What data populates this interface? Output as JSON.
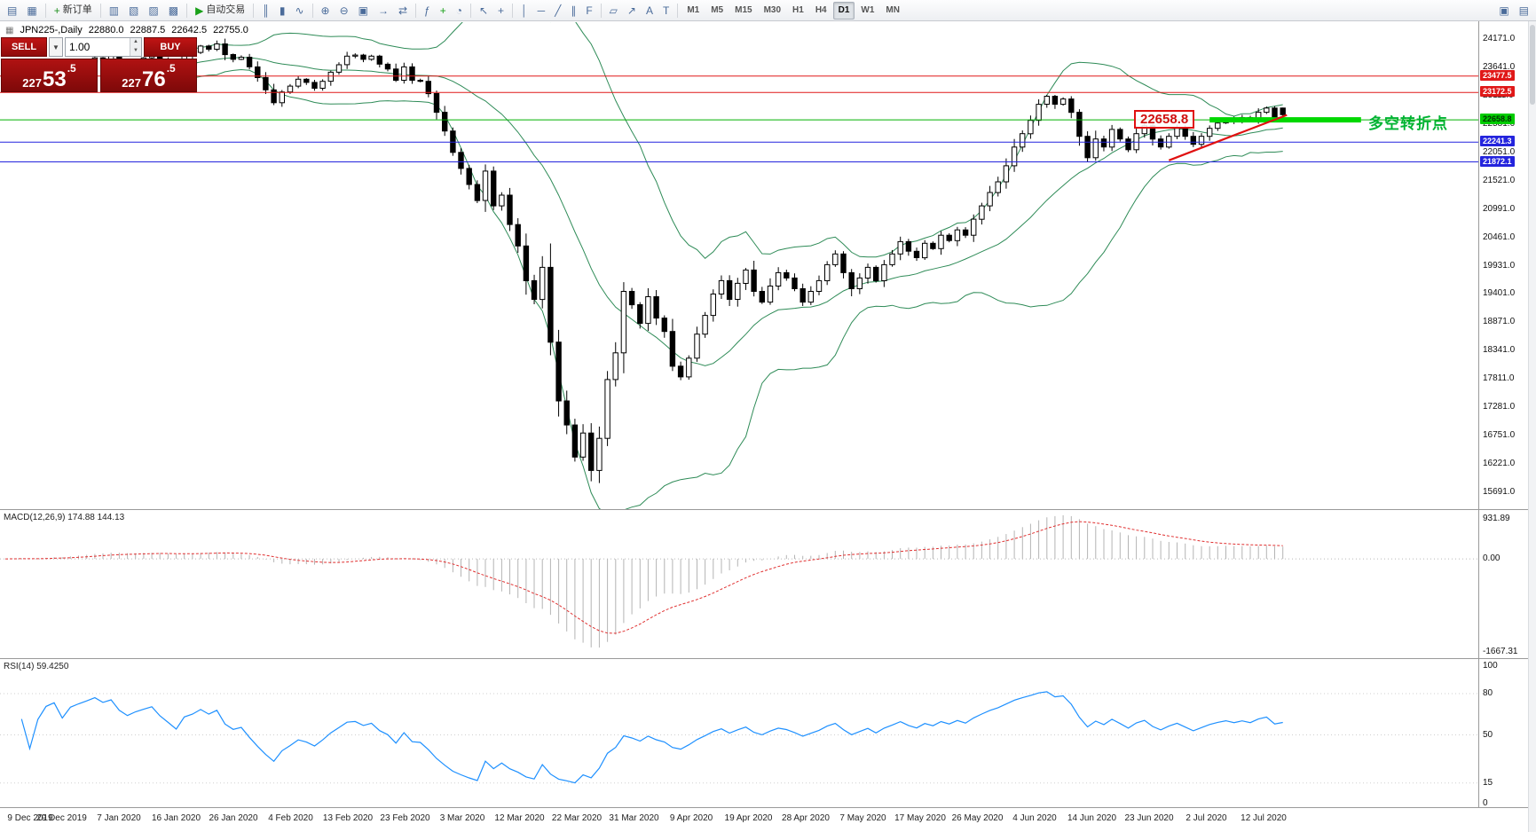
{
  "toolbar": {
    "buttons": [
      {
        "name": "new-chart-icon",
        "glyph": "▤"
      },
      {
        "name": "chart-profiles-icon",
        "glyph": "▦"
      },
      {
        "type": "sep"
      },
      {
        "name": "new-order-button",
        "glyph": "+",
        "glyph_color": "#1f8f1f",
        "label": "新订单"
      },
      {
        "type": "sep"
      },
      {
        "name": "market-watch-icon",
        "glyph": "▥"
      },
      {
        "name": "data-window-icon",
        "glyph": "▧"
      },
      {
        "name": "navigator-icon",
        "glyph": "▨"
      },
      {
        "name": "terminal-icon",
        "glyph": "▩"
      },
      {
        "type": "sep"
      },
      {
        "name": "autotrading-button",
        "glyph": "▶",
        "glyph_color": "#18a018",
        "label": "自动交易"
      },
      {
        "type": "sep"
      },
      {
        "name": "bar-chart-icon",
        "glyph": "║"
      },
      {
        "name": "candlestick-chart-icon",
        "glyph": "▮"
      },
      {
        "name": "line-chart-icon",
        "glyph": "∿"
      },
      {
        "type": "sep"
      },
      {
        "name": "zoom-in-icon",
        "glyph": "⊕"
      },
      {
        "name": "zoom-out-icon",
        "glyph": "⊖"
      },
      {
        "name": "tile-windows-icon",
        "glyph": "▣"
      },
      {
        "name": "auto-scroll-icon",
        "glyph": "→"
      },
      {
        "name": "chart-shift-icon",
        "glyph": "⇄"
      },
      {
        "type": "sep"
      },
      {
        "name": "indicators-icon",
        "glyph": "ƒ"
      },
      {
        "name": "add-indicator-icon",
        "glyph": "+",
        "glyph_color": "#18a018"
      },
      {
        "name": "periods-icon",
        "glyph": "◔"
      },
      {
        "type": "sep"
      },
      {
        "name": "cursor-icon",
        "glyph": "↖"
      },
      {
        "name": "crosshair-icon",
        "glyph": "+"
      },
      {
        "type": "sep"
      },
      {
        "name": "vertical-line-icon",
        "glyph": "│"
      },
      {
        "name": "horizontal-line-icon",
        "glyph": "─"
      },
      {
        "name": "trendline-icon",
        "glyph": "╱"
      },
      {
        "name": "channel-icon",
        "glyph": "∥"
      },
      {
        "name": "fibonacci-icon",
        "glyph": "F"
      },
      {
        "type": "sep"
      },
      {
        "name": "shapes-icon",
        "glyph": "▱"
      },
      {
        "name": "arrows-icon",
        "glyph": "↗"
      },
      {
        "name": "text-icon",
        "glyph": "A"
      },
      {
        "name": "text-label-icon",
        "glyph": "T"
      },
      {
        "type": "sep"
      }
    ],
    "timeframes": {
      "items": [
        "M1",
        "M5",
        "M15",
        "M30",
        "H1",
        "H4",
        "D1",
        "W1",
        "MN"
      ],
      "active": "D1"
    },
    "right_buttons": [
      {
        "name": "dock-window-icon",
        "glyph": "▣"
      },
      {
        "name": "window-list-icon",
        "glyph": "▤"
      }
    ]
  },
  "chart_header": {
    "symbol": "JPN225-,Daily",
    "open": "22880.0",
    "high": "22887.5",
    "low": "22642.5",
    "close": "22755.0"
  },
  "trade_panel": {
    "sell_label": "SELL",
    "buy_label": "BUY",
    "volume": "1.00",
    "sell_price_head": "227",
    "sell_price_big": "53",
    "sell_price_frac": ".5",
    "buy_price_head": "227",
    "buy_price_big": "76",
    "buy_price_frac": ".5"
  },
  "overlays": {
    "hlines": [
      {
        "name": "resistance-line-1",
        "price": 23477.5,
        "color": "#e01818",
        "width": 1
      },
      {
        "name": "resistance-line-2",
        "price": 23172.5,
        "color": "#e01818",
        "width": 1
      },
      {
        "name": "pivot-line",
        "price": 22658.8,
        "color": "#00b000",
        "width": 1
      },
      {
        "name": "support-line-1",
        "price": 22241.3,
        "color": "#2424dd",
        "width": 1
      },
      {
        "name": "support-line-2",
        "price": 21872.1,
        "color": "#2424dd",
        "width": 1
      }
    ],
    "pivot_bar": {
      "price": 22658.8,
      "bar1": 148,
      "bar2": 166.6,
      "color": "#00d800"
    },
    "trend_line": {
      "bar1": 143,
      "price1": 21900,
      "bar2": 157.5,
      "price2": 22750,
      "color": "#e01010"
    },
    "callout_text": "22658.8",
    "annotation_text": "多空转折点"
  },
  "price_axis": {
    "labels": [
      "24171.0",
      "23641.0",
      "23111.0",
      "22581.0",
      "22051.0",
      "21521.0",
      "20991.0",
      "20461.0",
      "19931.0",
      "19401.0",
      "18871.0",
      "18341.0",
      "17811.0",
      "17281.0",
      "16751.0",
      "16221.0",
      "15691.0"
    ],
    "markers": [
      {
        "value": "23477.5",
        "price": 23477.5,
        "color": "#e01818",
        "text": "#ffffff"
      },
      {
        "value": "23172.5",
        "price": 23172.5,
        "color": "#e01818",
        "text": "#ffffff"
      },
      {
        "value": "22658.8",
        "price": 22658.8,
        "color": "#00cc00",
        "text": "#033003"
      },
      {
        "value": "22241.3",
        "price": 22241.3,
        "color": "#2424dd",
        "text": "#ffffff"
      },
      {
        "value": "21872.1",
        "price": 21872.1,
        "color": "#2424dd",
        "text": "#ffffff"
      }
    ]
  },
  "macd_panel": {
    "label": "MACD(12,26,9) 174.88 144.13",
    "axis_top": "931.89",
    "axis_zero": "0.00",
    "axis_bottom": "-1667.31"
  },
  "rsi_panel": {
    "label": "RSI(14) 59.4250",
    "levels": [
      100,
      80,
      50,
      15,
      0
    ]
  },
  "date_axis": {
    "labels": [
      "9 Dec 2019",
      "29 Dec 2019",
      "7 Jan 2020",
      "16 Jan 2020",
      "26 Jan 2020",
      "4 Feb 2020",
      "13 Feb 2020",
      "23 Feb 2020",
      "3 Mar 2020",
      "12 Mar 2020",
      "22 Mar 2020",
      "31 Mar 2020",
      "9 Apr 2020",
      "19 Apr 2020",
      "28 Apr 2020",
      "7 May 2020",
      "17 May 2020",
      "26 May 2020",
      "4 Jun 2020",
      "14 Jun 2020",
      "23 Jun 2020",
      "2 Jul 2020",
      "12 Jul 2020"
    ]
  },
  "chart_data": {
    "type": "candlestick",
    "symbol": "JPN225",
    "timeframe": "Daily",
    "visible_range": {
      "first_date": "9 Dec 2019",
      "last_date": "12 Jul 2020"
    },
    "price_axis_range": [
      15691.0,
      24171.0
    ],
    "closes": [
      23350,
      23430,
      23380,
      23310,
      23420,
      23520,
      23560,
      23480,
      23620,
      23680,
      23740,
      23820,
      23780,
      23850,
      23740,
      23680,
      23760,
      23820,
      23880,
      23780,
      23700,
      23610,
      23850,
      23920,
      24040,
      23980,
      24080,
      23880,
      23790,
      23830,
      23650,
      23450,
      23220,
      22980,
      23180,
      23290,
      23420,
      23360,
      23250,
      23380,
      23550,
      23690,
      23850,
      23870,
      23790,
      23850,
      23700,
      23610,
      23400,
      23650,
      23400,
      23380,
      23150,
      22800,
      22450,
      22050,
      21750,
      21450,
      21150,
      21700,
      21050,
      21250,
      20700,
      20300,
      19650,
      19300,
      19900,
      18500,
      17400,
      16950,
      16350,
      16800,
      16100,
      16700,
      17800,
      18300,
      19450,
      19200,
      18850,
      19350,
      18950,
      18700,
      18050,
      17850,
      18200,
      18650,
      19000,
      19400,
      19650,
      19300,
      19600,
      19850,
      19450,
      19250,
      19550,
      19800,
      19700,
      19500,
      19250,
      19450,
      19650,
      19950,
      20150,
      19800,
      19500,
      19700,
      19900,
      19650,
      19950,
      20150,
      20380,
      20200,
      20080,
      20350,
      20250,
      20500,
      20400,
      20600,
      20500,
      20800,
      21050,
      21300,
      21500,
      21800,
      22150,
      22400,
      22650,
      22950,
      23100,
      22950,
      23050,
      22800,
      22350,
      21950,
      22300,
      22150,
      22480,
      22300,
      22100,
      22400,
      22550,
      22300,
      22150,
      22350,
      22500,
      22350,
      22200,
      22350,
      22500,
      22600,
      22680,
      22620,
      22700,
      22650,
      22800,
      22880,
      22700,
      22755
    ],
    "last_ohlc": {
      "o": 22880.0,
      "h": 22887.5,
      "l": 22642.5,
      "c": 22755.0
    },
    "indicators": [
      {
        "name": "Bollinger Bands",
        "period": 20,
        "deviation": 2
      },
      {
        "name": "MACD",
        "params": [
          12,
          26,
          9
        ],
        "value": 174.88,
        "signal": 144.13,
        "range": [
          -1667.31,
          931.89
        ]
      },
      {
        "name": "RSI",
        "period": 14,
        "value": 59.425
      }
    ],
    "horizontal_levels": [
      23477.5,
      23172.5,
      22658.8,
      22241.3,
      21872.1
    ]
  }
}
